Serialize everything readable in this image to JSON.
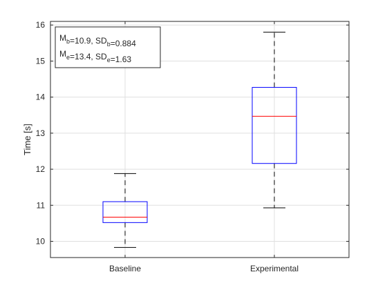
{
  "chart_data": {
    "type": "box",
    "categories": [
      "Baseline",
      "Experimental"
    ],
    "ylabel": "Time [s]",
    "xlabel": "",
    "ylim": [
      9.55,
      16.1
    ],
    "yticks": [
      10,
      11,
      12,
      13,
      14,
      15,
      16
    ],
    "grid": true,
    "boxes": [
      {
        "category": "Baseline",
        "whisker_low": 9.83,
        "q1": 10.52,
        "median": 10.67,
        "q3": 11.1,
        "whisker_high": 11.88
      },
      {
        "category": "Experimental",
        "whisker_low": 10.93,
        "q1": 12.16,
        "median": 13.47,
        "q3": 14.27,
        "whisker_high": 15.8
      }
    ],
    "annotation": {
      "placement": "top-left",
      "lines": [
        [
          {
            "t": "M"
          },
          {
            "t": "b",
            "sub": true
          },
          {
            "t": "=10.9, SD"
          },
          {
            "t": "b",
            "sub": true
          },
          {
            "t": "=0.884"
          }
        ],
        [
          {
            "t": "M"
          },
          {
            "t": "e",
            "sub": true
          },
          {
            "t": "=13.4, SD"
          },
          {
            "t": "e",
            "sub": true
          },
          {
            "t": "=1.63"
          }
        ]
      ]
    },
    "colors": {
      "box": "#0000ff",
      "median": "#ff0000",
      "whisker": "#000000",
      "grid": "#dfdfdf",
      "axis": "#262626"
    }
  }
}
